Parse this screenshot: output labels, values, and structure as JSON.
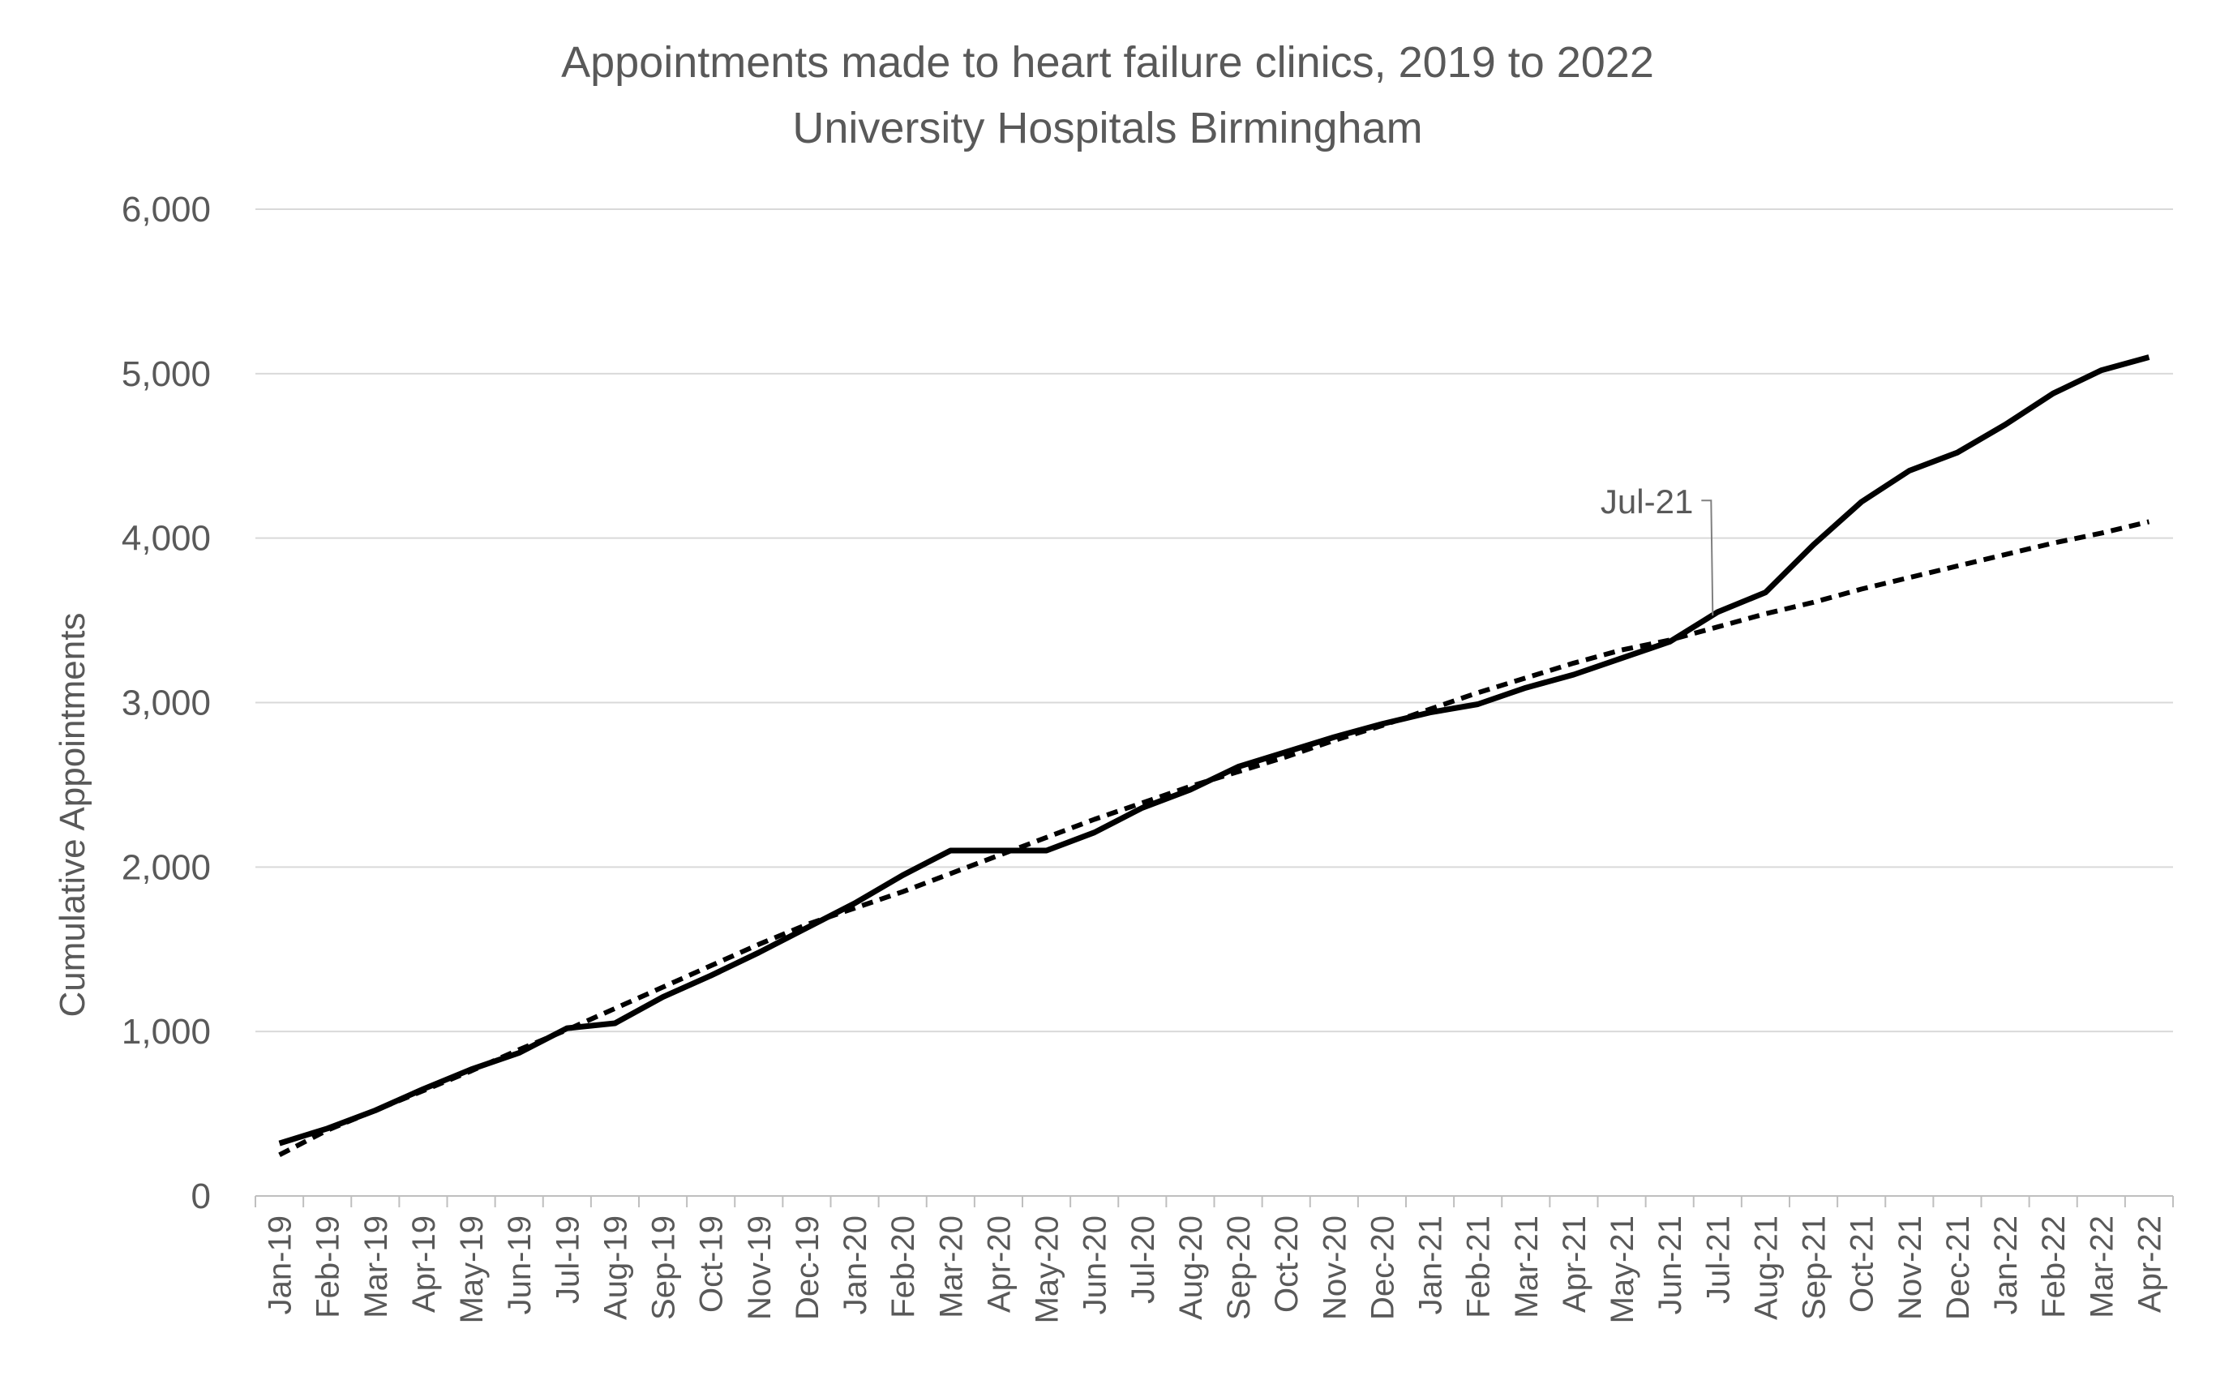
{
  "chart_data": {
    "type": "line",
    "title": "Appointments made to heart failure clinics, 2019 to 2022",
    "subtitle": "University Hospitals Birmingham",
    "xlabel": "",
    "ylabel": "Cumulative Appointments",
    "ylim": [
      0,
      6000
    ],
    "yticks": [
      0,
      1000,
      2000,
      3000,
      4000,
      5000,
      6000
    ],
    "ytick_labels": [
      "0",
      "1,000",
      "2,000",
      "3,000",
      "4,000",
      "5,000",
      "6,000"
    ],
    "grid": true,
    "legend": "none",
    "categories": [
      "Jan-19",
      "Feb-19",
      "Mar-19",
      "Apr-19",
      "May-19",
      "Jun-19",
      "Jul-19",
      "Aug-19",
      "Sep-19",
      "Oct-19",
      "Nov-19",
      "Dec-19",
      "Jan-20",
      "Feb-20",
      "Mar-20",
      "Apr-20",
      "May-20",
      "Jun-20",
      "Jul-20",
      "Aug-20",
      "Sep-20",
      "Oct-20",
      "Nov-20",
      "Dec-20",
      "Jan-21",
      "Feb-21",
      "Mar-21",
      "Apr-21",
      "May-21",
      "Jun-21",
      "Jul-21",
      "Aug-21",
      "Sep-21",
      "Oct-21",
      "Nov-21",
      "Dec-21",
      "Jan-22",
      "Feb-22",
      "Mar-22",
      "Apr-22"
    ],
    "series": [
      {
        "style": "solid",
        "color": "#000000",
        "values": [
          320,
          410,
          520,
          650,
          770,
          870,
          1020,
          1050,
          1210,
          1340,
          1480,
          1630,
          1780,
          1950,
          2100,
          2100,
          2100,
          2210,
          2360,
          2470,
          2610,
          2700,
          2790,
          2870,
          2940,
          2990,
          3090,
          3170,
          3270,
          3370,
          3550,
          3670,
          3960,
          4220,
          4410,
          4520,
          4690,
          4880,
          5020,
          5100
        ]
      },
      {
        "style": "dashed",
        "color": "#000000",
        "values": [
          250,
          400,
          520,
          640,
          760,
          890,
          1010,
          1140,
          1270,
          1400,
          1530,
          1650,
          1750,
          1850,
          1960,
          2070,
          2180,
          2290,
          2390,
          2490,
          2580,
          2670,
          2770,
          2860,
          2960,
          3060,
          3150,
          3240,
          3320,
          3380,
          3460,
          3540,
          3610,
          3690,
          3760,
          3830,
          3900,
          3970,
          4030,
          4100
        ]
      }
    ],
    "annotations": [
      {
        "text": "Jul-21",
        "x": "Jul-21",
        "y": 3460
      }
    ]
  }
}
